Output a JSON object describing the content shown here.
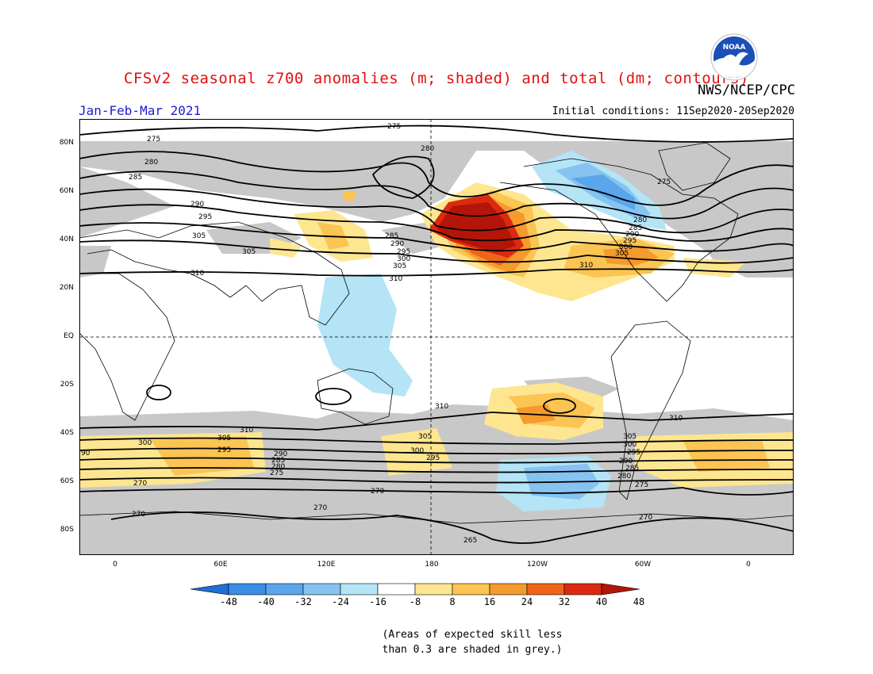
{
  "header": {
    "title": "CFSv2 seasonal z700 anomalies (m; shaded) and total (dm; contours)",
    "agency": "NWS/NCEP/CPC",
    "season": "Jan-Feb-Mar 2021",
    "initial_conditions": "Initial conditions: 11Sep2020-20Sep2020",
    "logo_text": "NOAA"
  },
  "axes": {
    "lat_labels": [
      "80N",
      "60N",
      "40N",
      "20N",
      "EQ",
      "20S",
      "40S",
      "60S",
      "80S"
    ],
    "lon_labels": [
      "0",
      "60E",
      "120E",
      "180",
      "120W",
      "60W",
      "0"
    ]
  },
  "contour_labels": [
    "275",
    "280",
    "285",
    "290",
    "295",
    "300",
    "305",
    "310",
    "270",
    "265",
    "90"
  ],
  "colorbar": {
    "tick_labels": [
      "-48",
      "-40",
      "-32",
      "-24",
      "-16",
      "-8",
      "8",
      "16",
      "24",
      "32",
      "40",
      "48"
    ],
    "colors": [
      "#1e6fd8",
      "#3a8ee6",
      "#5aa6ec",
      "#86c3f0",
      "#b4e4f6",
      "#ffffff",
      "#fde68f",
      "#fbc453",
      "#f59a2c",
      "#f0641a",
      "#dc2a10",
      "#b31508"
    ]
  },
  "footnote": {
    "line1": "(Areas of expected skill less",
    "line2": "than 0.3 are shaded in grey.)"
  },
  "colors": {
    "title": "#e01010",
    "season": "#2020d0",
    "skill_grey": "#c8c8c8"
  }
}
